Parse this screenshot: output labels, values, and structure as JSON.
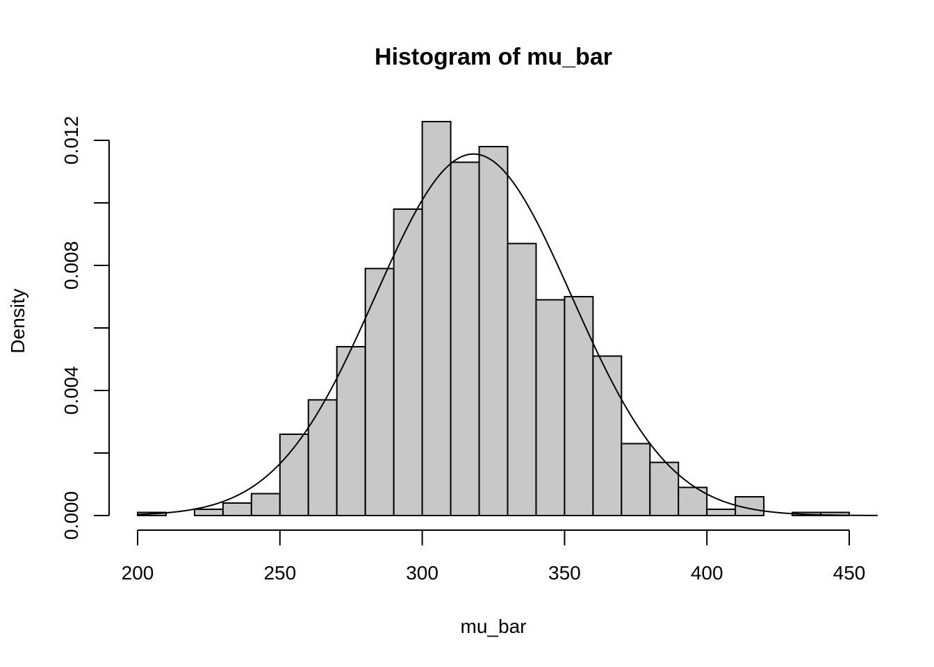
{
  "chart_data": {
    "type": "bar",
    "title": "Histogram of mu_bar",
    "xlabel": "mu_bar",
    "ylabel": "Density",
    "bin_edges": [
      200,
      210,
      220,
      230,
      240,
      250,
      260,
      270,
      280,
      290,
      300,
      310,
      320,
      330,
      340,
      350,
      360,
      370,
      380,
      390,
      400,
      410,
      420,
      430,
      440,
      450
    ],
    "values": [
      0.0001,
      0.0,
      0.0002,
      0.0004,
      0.0007,
      0.0026,
      0.0037,
      0.0054,
      0.0079,
      0.0098,
      0.0126,
      0.0113,
      0.0118,
      0.0087,
      0.0069,
      0.007,
      0.0051,
      0.0023,
      0.0017,
      0.0009,
      0.0002,
      0.0006,
      0.0,
      0.0001,
      0.0001
    ],
    "x_ticks": [
      200,
      250,
      300,
      350,
      400,
      450
    ],
    "y_ticks": [
      0.0,
      0.002,
      0.004,
      0.006,
      0.008,
      0.01,
      0.012
    ],
    "y_tick_labels": [
      "0.000",
      "",
      "0.004",
      "",
      "0.008",
      "",
      "0.012"
    ],
    "xlim": [
      200,
      460
    ],
    "ylim": [
      0,
      0.0126
    ],
    "overlay_curve": {
      "type": "normal_density",
      "mean": 318,
      "sd": 34.5
    },
    "grid": false,
    "legend": "none"
  }
}
